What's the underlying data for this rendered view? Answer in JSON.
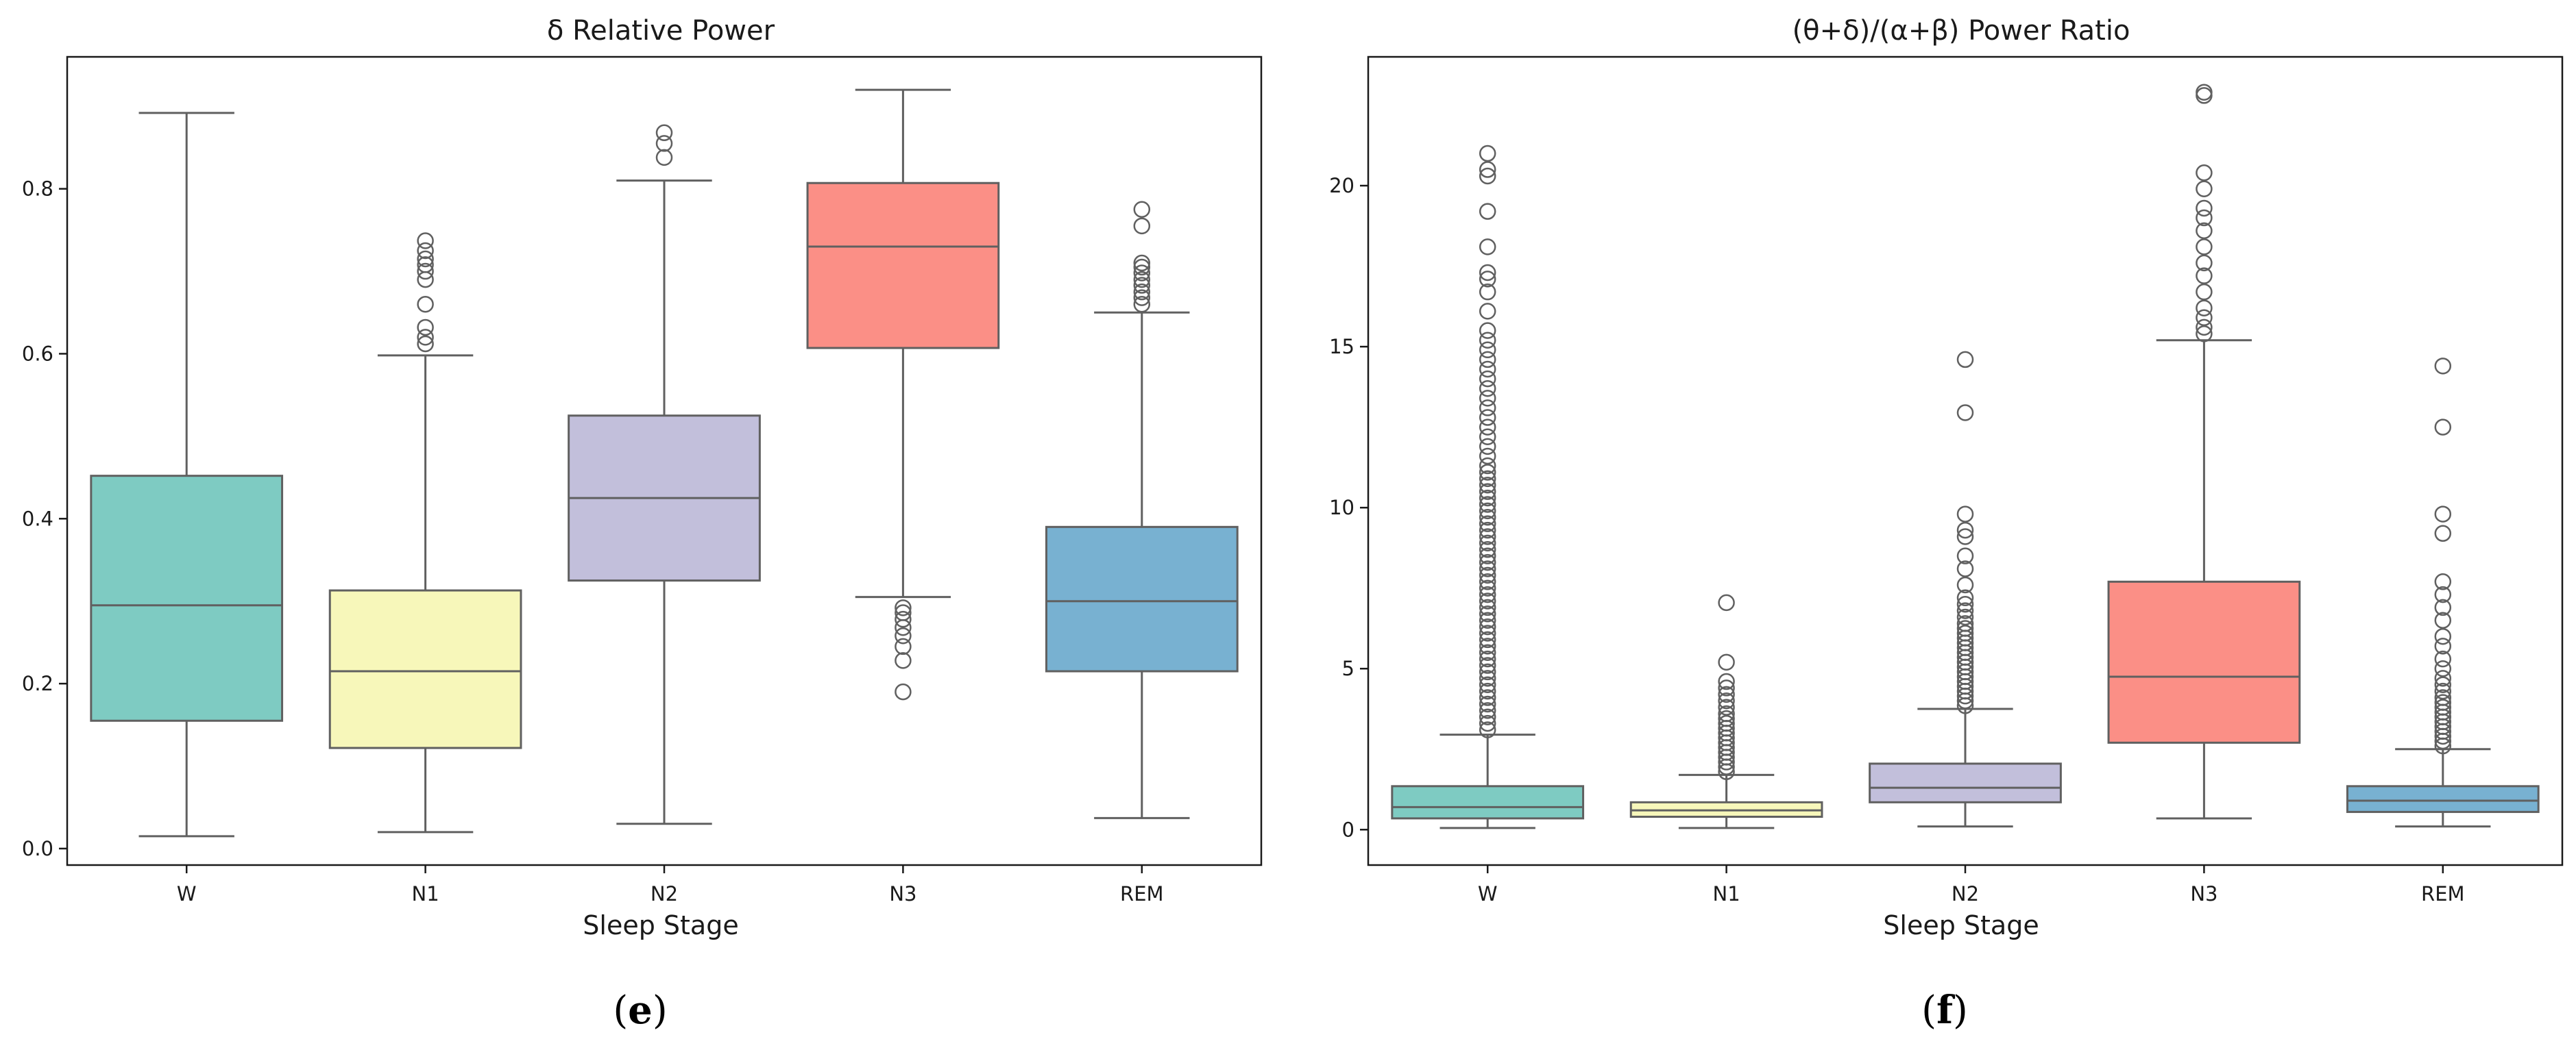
{
  "chart_data": [
    {
      "type": "box",
      "panel_label": "e",
      "title": "δ Relative Power",
      "xlabel": "Sleep Stage",
      "ylabel": "",
      "categories": [
        "W",
        "N1",
        "N2",
        "N3",
        "REM"
      ],
      "colors": [
        "#7ecbc2",
        "#f7f7ba",
        "#c2bfdb",
        "#fb8f86",
        "#78b1d1"
      ],
      "ylim": [
        -0.02,
        0.96
      ],
      "yticks": [
        0.0,
        0.2,
        0.4,
        0.6,
        0.8
      ],
      "ytick_labels": [
        "0.0",
        "0.2",
        "0.4",
        "0.6",
        "0.8"
      ],
      "boxes": [
        {
          "label": "W",
          "whisker_low": 0.015,
          "q1": 0.155,
          "median": 0.295,
          "q3": 0.452,
          "whisker_high": 0.892,
          "outliers": []
        },
        {
          "label": "N1",
          "whisker_low": 0.02,
          "q1": 0.122,
          "median": 0.215,
          "q3": 0.313,
          "whisker_high": 0.598,
          "outliers": [
            0.612,
            0.62,
            0.632,
            0.66,
            0.69,
            0.7,
            0.708,
            0.715,
            0.725,
            0.737
          ]
        },
        {
          "label": "N2",
          "whisker_low": 0.03,
          "q1": 0.325,
          "median": 0.425,
          "q3": 0.525,
          "whisker_high": 0.81,
          "outliers": [
            0.838,
            0.855,
            0.868
          ]
        },
        {
          "label": "N3",
          "whisker_low": 0.305,
          "q1": 0.607,
          "median": 0.73,
          "q3": 0.807,
          "whisker_high": 0.92,
          "outliers": [
            0.19,
            0.228,
            0.245,
            0.258,
            0.268,
            0.278,
            0.286,
            0.292
          ]
        },
        {
          "label": "REM",
          "whisker_low": 0.037,
          "q1": 0.215,
          "median": 0.3,
          "q3": 0.39,
          "whisker_high": 0.65,
          "outliers": [
            0.66,
            0.668,
            0.675,
            0.683,
            0.69,
            0.698,
            0.705,
            0.71,
            0.755,
            0.775
          ]
        }
      ]
    },
    {
      "type": "box",
      "panel_label": "f",
      "title": "(θ+δ)/(α+β) Power Ratio",
      "xlabel": "Sleep Stage",
      "ylabel": "",
      "categories": [
        "W",
        "N1",
        "N2",
        "N3",
        "REM"
      ],
      "colors": [
        "#7ecbc2",
        "#f7f7ba",
        "#c2bfdb",
        "#fb8f86",
        "#78b1d1"
      ],
      "ylim": [
        -1.1,
        24.0
      ],
      "yticks": [
        0,
        5,
        10,
        15,
        20
      ],
      "ytick_labels": [
        "0",
        "5",
        "10",
        "15",
        "20"
      ],
      "boxes": [
        {
          "label": "W",
          "whisker_low": 0.05,
          "q1": 0.35,
          "median": 0.7,
          "q3": 1.35,
          "whisker_high": 2.95,
          "outliers": [
            3.1,
            3.3,
            3.5,
            3.7,
            3.9,
            4.1,
            4.3,
            4.5,
            4.7,
            4.9,
            5.1,
            5.3,
            5.5,
            5.7,
            5.9,
            6.1,
            6.3,
            6.5,
            6.7,
            6.9,
            7.1,
            7.3,
            7.5,
            7.7,
            7.9,
            8.1,
            8.3,
            8.5,
            8.7,
            8.9,
            9.1,
            9.3,
            9.5,
            9.7,
            9.9,
            10.1,
            10.3,
            10.5,
            10.7,
            10.9,
            11.1,
            11.3,
            11.6,
            11.9,
            12.2,
            12.5,
            12.8,
            13.1,
            13.4,
            13.7,
            14.0,
            14.3,
            14.6,
            14.9,
            15.2,
            15.5,
            16.1,
            16.7,
            17.1,
            17.3,
            18.1,
            19.2,
            20.3,
            20.5,
            21.0
          ]
        },
        {
          "label": "N1",
          "whisker_low": 0.05,
          "q1": 0.4,
          "median": 0.6,
          "q3": 0.85,
          "whisker_high": 1.7,
          "outliers": [
            1.8,
            1.95,
            2.1,
            2.25,
            2.4,
            2.55,
            2.7,
            2.85,
            3.0,
            3.15,
            3.3,
            3.45,
            3.6,
            3.8,
            4.0,
            4.2,
            4.4,
            4.6,
            5.2,
            7.05
          ]
        },
        {
          "label": "N2",
          "whisker_low": 0.1,
          "q1": 0.85,
          "median": 1.3,
          "q3": 2.05,
          "whisker_high": 3.75,
          "outliers": [
            3.85,
            4.0,
            4.15,
            4.3,
            4.45,
            4.6,
            4.75,
            4.9,
            5.05,
            5.2,
            5.35,
            5.5,
            5.65,
            5.8,
            5.95,
            6.1,
            6.25,
            6.4,
            6.6,
            6.8,
            7.0,
            7.2,
            7.6,
            8.1,
            8.5,
            9.1,
            9.3,
            9.8,
            12.95,
            14.6
          ]
        },
        {
          "label": "N3",
          "whisker_low": 0.35,
          "q1": 2.7,
          "median": 4.75,
          "q3": 7.7,
          "whisker_high": 15.2,
          "outliers": [
            15.4,
            15.6,
            15.9,
            16.2,
            16.7,
            17.2,
            17.6,
            18.1,
            18.6,
            19.0,
            19.3,
            19.9,
            20.4,
            22.8,
            22.9
          ]
        },
        {
          "label": "REM",
          "whisker_low": 0.1,
          "q1": 0.55,
          "median": 0.9,
          "q3": 1.35,
          "whisker_high": 2.5,
          "outliers": [
            2.6,
            2.75,
            2.9,
            3.05,
            3.2,
            3.35,
            3.5,
            3.65,
            3.8,
            3.95,
            4.1,
            4.3,
            4.5,
            4.7,
            5.0,
            5.3,
            5.7,
            6.0,
            6.5,
            6.9,
            7.3,
            7.7,
            9.2,
            9.8,
            12.5,
            14.4
          ]
        }
      ]
    }
  ]
}
